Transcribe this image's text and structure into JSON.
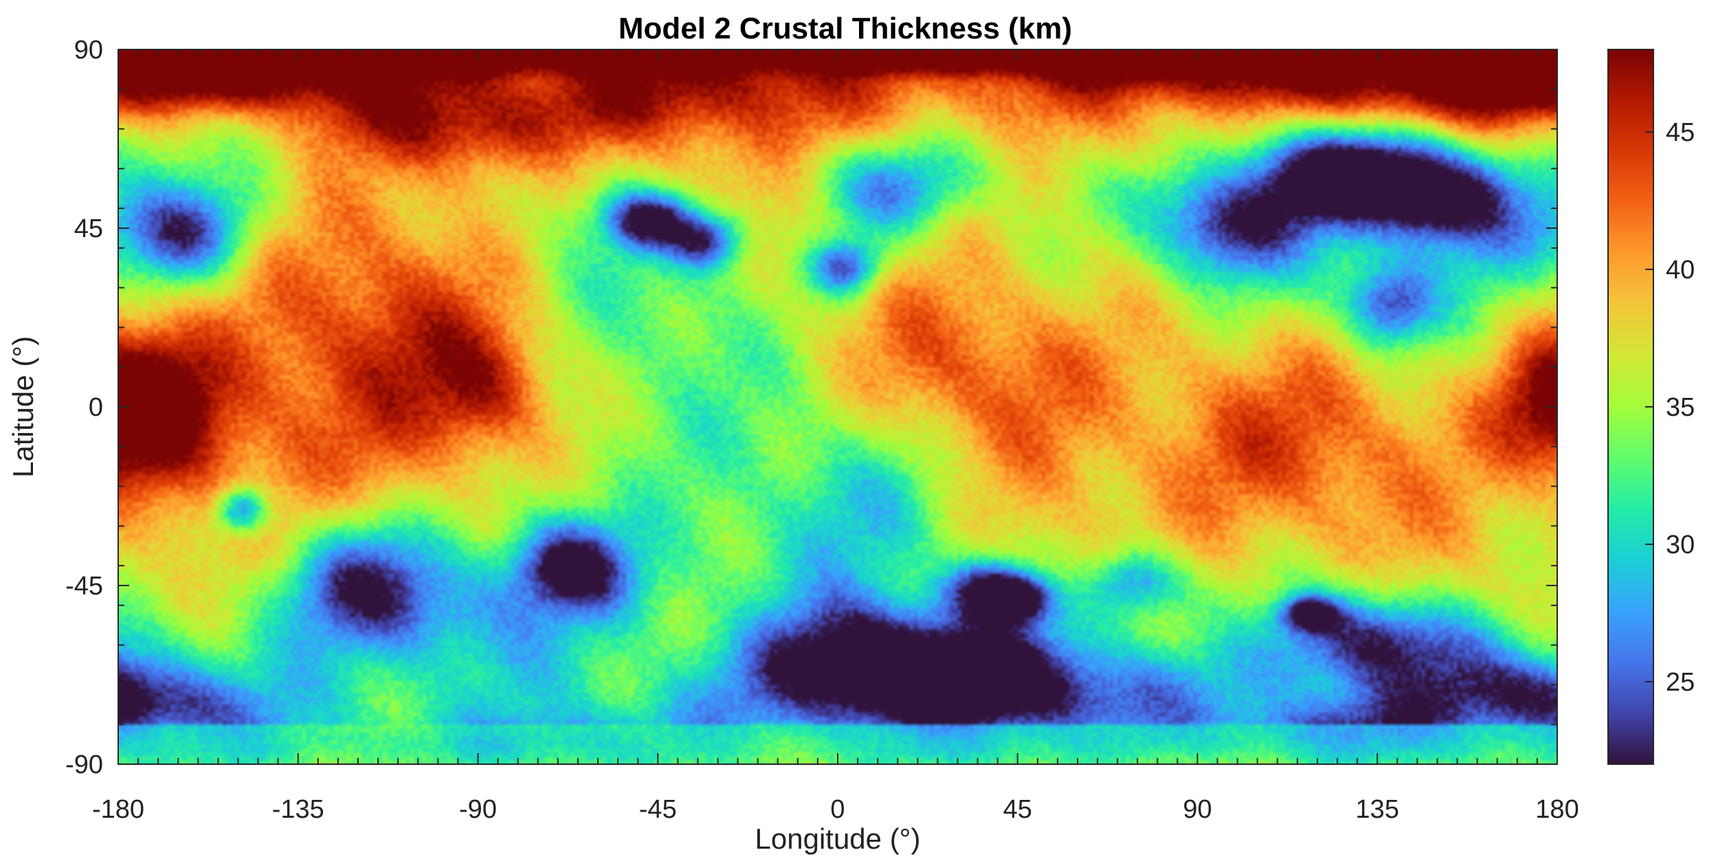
{
  "chart_data": {
    "type": "heatmap",
    "title": "Model 2 Crustal Thickness (km)",
    "xlabel": "Longitude (°)",
    "ylabel": "Latitude (°)",
    "xlim": [
      -180,
      180
    ],
    "ylim": [
      -90,
      90
    ],
    "xticks": [
      -180,
      -135,
      -90,
      -45,
      0,
      45,
      90,
      135,
      180
    ],
    "yticks": [
      90,
      45,
      0,
      -45,
      -90
    ],
    "colorbar": {
      "range": [
        22,
        48
      ],
      "ticks": [
        25,
        30,
        35,
        40,
        45
      ],
      "colormap": "turbo",
      "colors": [
        "#30123b",
        "#4145ab",
        "#4675ed",
        "#39a2fc",
        "#1bcfd4",
        "#24eca6",
        "#61fc6c",
        "#a4fc3b",
        "#d1e834",
        "#f3c63a",
        "#fe9b2d",
        "#f36315",
        "#d93806",
        "#b11901",
        "#7a0403"
      ]
    },
    "base_level_km": 36,
    "features": [
      {
        "lon": -121,
        "lat": -45,
        "r": 12,
        "value": 22
      },
      {
        "lon": 97,
        "lat": 46,
        "r": 10,
        "value": 23
      },
      {
        "lon": -164,
        "lat": 43,
        "r": 9,
        "value": 23.5
      },
      {
        "lon": 2,
        "lat": -62,
        "r": 10,
        "value": 24
      },
      {
        "lon": -67,
        "lat": -40,
        "r": 8,
        "value": 23.5
      },
      {
        "lon": -62,
        "lat": -43,
        "r": 22,
        "value": 30
      },
      {
        "lon": 37,
        "lat": -68,
        "r": 12,
        "value": 25
      },
      {
        "lon": 130,
        "lat": -58,
        "r": 9,
        "value": 24
      },
      {
        "lon": 138,
        "lat": 25,
        "r": 7,
        "value": 25
      },
      {
        "lon": 12,
        "lat": 55,
        "r": 9,
        "value": 24
      },
      {
        "lon": 126,
        "lat": 58,
        "r": 8,
        "value": 23
      },
      {
        "lon": 150,
        "lat": 53,
        "r": 7,
        "value": 23
      },
      {
        "lon": -149,
        "lat": -26,
        "r": 4,
        "value": 23
      },
      {
        "lon": -48,
        "lat": 47,
        "r": 5,
        "value": 23
      },
      {
        "lon": -33,
        "lat": 42,
        "r": 5,
        "value": 23
      },
      {
        "lon": 2,
        "lat": 35,
        "r": 5,
        "value": 23.5
      },
      {
        "lon": 45,
        "lat": -48,
        "r": 4,
        "value": 22
      },
      {
        "lon": 37,
        "lat": -45,
        "r": 5,
        "value": 24
      },
      {
        "lon": 75,
        "lat": -44,
        "r": 6,
        "value": 25
      },
      {
        "lon": 118,
        "lat": -52,
        "r": 3,
        "value": 23
      },
      {
        "lon": 170,
        "lat": -73,
        "r": 7,
        "value": 26
      },
      {
        "lon": 158,
        "lat": 79,
        "r": 8,
        "value": 46
      },
      {
        "lon": 0,
        "lat": 87,
        "r": 30,
        "value": 46
      },
      {
        "lon": -120,
        "lat": 8,
        "r": 30,
        "value": 46
      },
      {
        "lon": -170,
        "lat": 0,
        "r": 13,
        "value": 44
      },
      {
        "lon": 178,
        "lat": 0,
        "r": 13,
        "value": 45
      },
      {
        "lon": 50,
        "lat": 10,
        "r": 20,
        "value": 42
      },
      {
        "lon": 95,
        "lat": -10,
        "r": 20,
        "value": 42
      },
      {
        "lon": -92,
        "lat": 70,
        "r": 9,
        "value": 44
      },
      {
        "lon": -88,
        "lat": 5,
        "r": 10,
        "value": 42
      },
      {
        "lon": 125,
        "lat": -10,
        "r": 22,
        "value": 40
      },
      {
        "lon": -30,
        "lat": 20,
        "r": 22,
        "value": 39
      },
      {
        "lon": 20,
        "lat": 10,
        "r": 14,
        "value": 39
      },
      {
        "lon": 120,
        "lat": 40,
        "r": 22,
        "value": 31
      },
      {
        "lon": -40,
        "lat": 30,
        "r": 30,
        "value": 30
      },
      {
        "lon": 10,
        "lat": -25,
        "r": 16,
        "value": 31
      },
      {
        "lon": -150,
        "lat": -72,
        "r": 10,
        "value": 31
      },
      {
        "lon": 60,
        "lat": -65,
        "r": 12,
        "value": 31
      },
      {
        "lon": 160,
        "lat": -60,
        "r": 9,
        "value": 30
      },
      {
        "lon": 165,
        "lat": 45,
        "r": 10,
        "value": 30
      }
    ]
  }
}
